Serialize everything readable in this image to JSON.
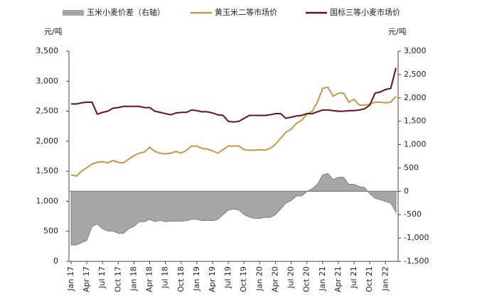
{
  "chart_data": {
    "type": "line",
    "left_unit": "元/吨",
    "right_unit": "元/吨",
    "categories": [
      "Jan 17",
      null,
      null,
      "Apr 17",
      null,
      null,
      "Jul 17",
      null,
      null,
      "Oct 17",
      null,
      null,
      "Jan 18",
      null,
      null,
      "Apr 18",
      null,
      null,
      "Jul 18",
      null,
      null,
      "Oct 18",
      null,
      null,
      "Jan 19",
      null,
      null,
      "Apr 19",
      null,
      null,
      "Jul 19",
      null,
      null,
      "Oct 19",
      null,
      null,
      "Jan 20",
      null,
      null,
      "Apr 20",
      null,
      null,
      "Jul 20",
      null,
      null,
      "Oct 20",
      null,
      null,
      "Jan 21",
      null,
      null,
      "Apr 21",
      null,
      null,
      "Jul 21",
      null,
      null,
      "Oct 21",
      null,
      null,
      "Jan 22",
      null,
      null
    ],
    "series": [
      {
        "name": "玉米小麦价差（右轴）",
        "kind": "area",
        "axis": "y2",
        "color": "#a6a6a6",
        "values": [
          -1150,
          -1150,
          -1100,
          -1050,
          -750,
          -700,
          -800,
          -850,
          -850,
          -900,
          -900,
          -800,
          -750,
          -650,
          -650,
          -600,
          -650,
          -620,
          -650,
          -640,
          -640,
          -640,
          -630,
          -600,
          -600,
          -630,
          -620,
          -630,
          -600,
          -500,
          -400,
          -380,
          -400,
          -500,
          -550,
          -580,
          -580,
          -560,
          -560,
          -500,
          -380,
          -250,
          -200,
          -100,
          -100,
          0,
          50,
          150,
          350,
          380,
          250,
          300,
          300,
          150,
          150,
          100,
          80,
          -50,
          -150,
          -180,
          -220,
          -250,
          -450
        ]
      },
      {
        "name": "黄玉米二等市场价",
        "kind": "line",
        "color": "#c8964a",
        "values": [
          1440,
          1420,
          1500,
          1560,
          1620,
          1650,
          1660,
          1640,
          1680,
          1650,
          1640,
          1700,
          1760,
          1800,
          1820,
          1900,
          1830,
          1800,
          1790,
          1800,
          1830,
          1800,
          1850,
          1920,
          1920,
          1880,
          1870,
          1840,
          1800,
          1860,
          1920,
          1920,
          1920,
          1860,
          1850,
          1850,
          1860,
          1850,
          1880,
          1950,
          2050,
          2150,
          2200,
          2300,
          2350,
          2450,
          2500,
          2650,
          2880,
          2900,
          2750,
          2800,
          2800,
          2650,
          2700,
          2600,
          2600,
          2620,
          2650,
          2650,
          2640,
          2650,
          2750
        ]
      },
      {
        "name": "国标三等小麦市场价",
        "kind": "line",
        "color": "#6b0f1a",
        "values": [
          2620,
          2620,
          2640,
          2650,
          2650,
          2450,
          2480,
          2500,
          2550,
          2560,
          2580,
          2580,
          2580,
          2580,
          2560,
          2560,
          2500,
          2480,
          2460,
          2440,
          2470,
          2480,
          2480,
          2520,
          2510,
          2490,
          2490,
          2470,
          2440,
          2430,
          2330,
          2320,
          2330,
          2380,
          2430,
          2430,
          2430,
          2430,
          2440,
          2460,
          2460,
          2380,
          2400,
          2420,
          2430,
          2460,
          2460,
          2490,
          2520,
          2520,
          2510,
          2500,
          2500,
          2510,
          2510,
          2520,
          2540,
          2600,
          2800,
          2820,
          2860,
          2880,
          3220
        ]
      }
    ],
    "ylim": [
      0,
      3500
    ],
    "yticks": [
      0,
      500,
      {
        "value": 1000,
        "label": "1,000"
      },
      {
        "value": 1500,
        "label": "1,500"
      },
      {
        "value": 2000,
        "label": "2,000"
      },
      {
        "value": 2500,
        "label": "2,500"
      },
      {
        "value": 3000,
        "label": "3,000"
      },
      {
        "value": 3500,
        "label": "3,500"
      }
    ],
    "y2lim": [
      -1500,
      3000
    ],
    "y2ticks": [
      {
        "value": -1500,
        "label": "-1,500"
      },
      {
        "value": -1000,
        "label": "-1,000"
      },
      -500,
      0,
      500,
      {
        "value": 1000,
        "label": "1,000"
      },
      {
        "value": 1500,
        "label": "1,500"
      },
      {
        "value": 2000,
        "label": "2,000"
      },
      {
        "value": 2500,
        "label": "2,500"
      },
      {
        "value": 3000,
        "label": "3,000"
      }
    ],
    "grid": false
  }
}
